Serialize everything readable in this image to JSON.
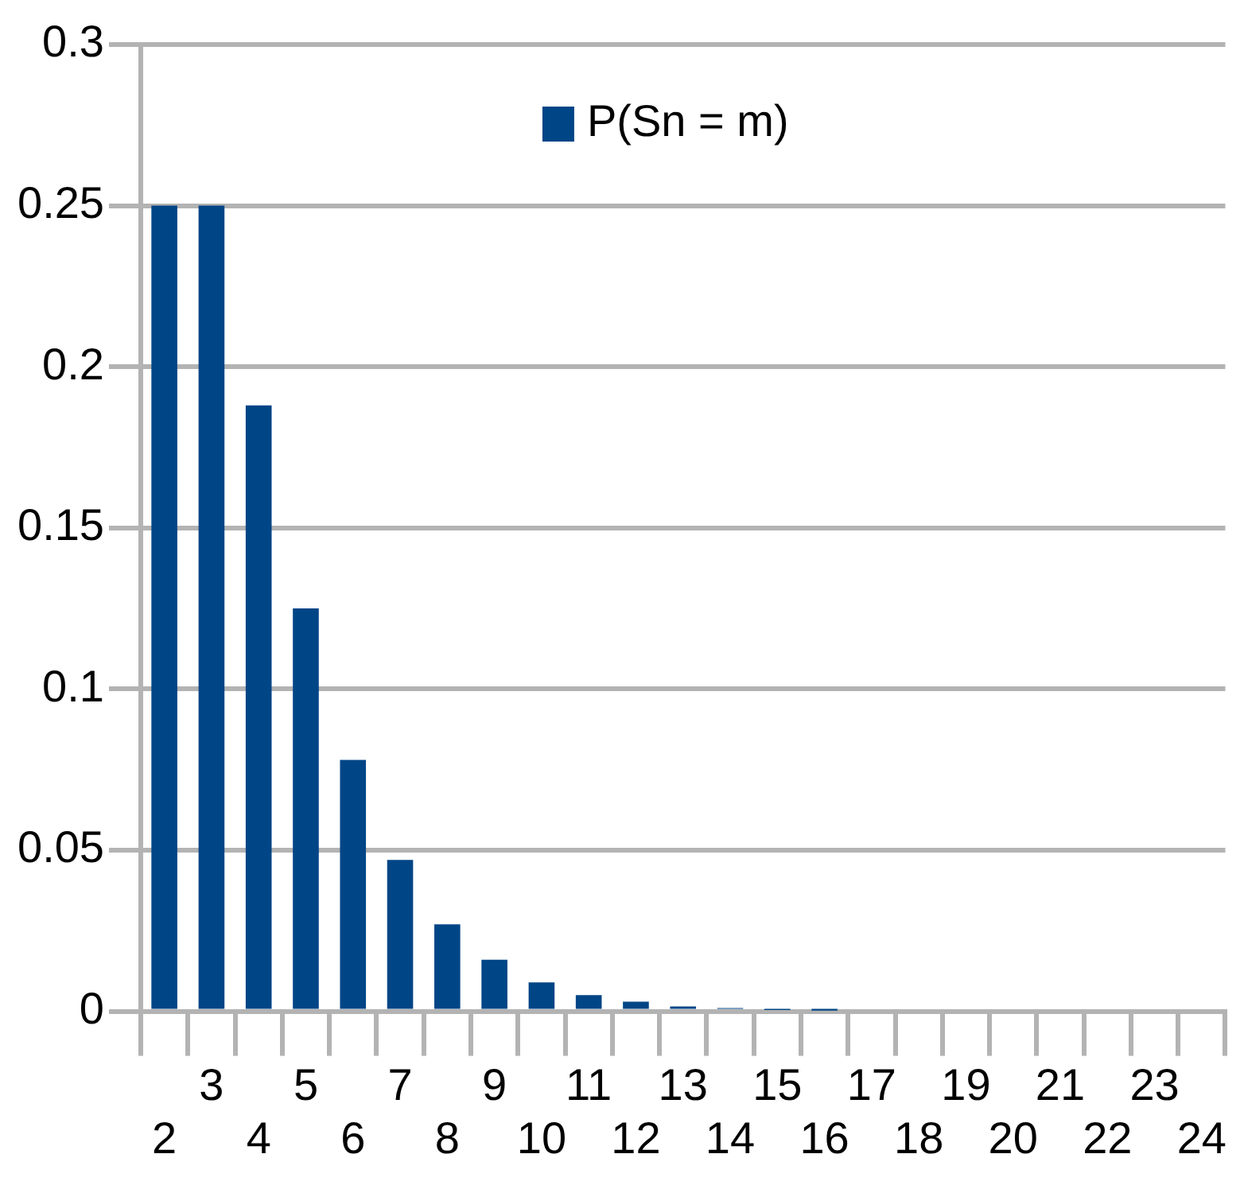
{
  "chart_data": {
    "type": "bar",
    "categories": [
      "2",
      "3",
      "4",
      "5",
      "6",
      "7",
      "8",
      "9",
      "10",
      "11",
      "12",
      "13",
      "14",
      "15",
      "16",
      "17",
      "18",
      "19",
      "20",
      "21",
      "22",
      "23",
      "24"
    ],
    "series": [
      {
        "name": "P(Sn = m)",
        "color": "#004586",
        "values": [
          0.25,
          0.25,
          0.188,
          0.125,
          0.078,
          0.047,
          0.027,
          0.016,
          0.009,
          0.005,
          0.003,
          0.0015,
          0.001,
          0.0004,
          0.0002,
          null,
          null,
          null,
          null,
          null,
          null,
          null,
          null
        ]
      }
    ],
    "ylim": [
      0,
      0.3
    ],
    "yticks": [
      0,
      0.05,
      0.1,
      0.15,
      0.2,
      0.25,
      0.3
    ],
    "grid": "y",
    "legend": "top"
  }
}
